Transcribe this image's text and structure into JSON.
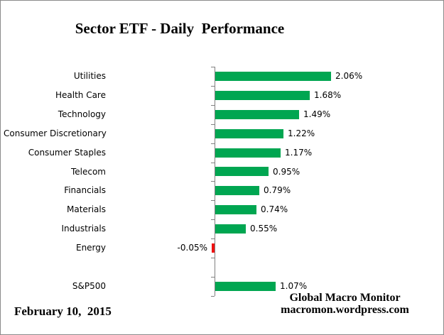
{
  "title": "Sector ETF - Daily  Performance",
  "footer": {
    "date": "February 10,  2015",
    "source_line1": "Global Macro Monitor",
    "source_line2": "macromon.wordpress.com"
  },
  "colors": {
    "positive_bar": "#00a651",
    "negative_bar": "#ee1111",
    "axis": "#808080",
    "frame_border": "#8a8a8a",
    "text": "#000000"
  },
  "chart_data": {
    "type": "bar",
    "orientation": "horizontal",
    "title": "Sector ETF - Daily  Performance",
    "xlabel": "",
    "ylabel": "",
    "value_unit": "%",
    "value_axis_labels_shown": false,
    "grid": false,
    "legend": false,
    "categories": [
      "Utilities",
      "Health Care",
      "Technology",
      "Consumer Discretionary",
      "Consumer Staples",
      "Telecom",
      "Financials",
      "Materials",
      "Industrials",
      "Energy",
      "",
      "S&P500"
    ],
    "values": [
      2.06,
      1.68,
      1.49,
      1.22,
      1.17,
      0.95,
      0.79,
      0.74,
      0.55,
      -0.05,
      null,
      1.07
    ],
    "rows": [
      {
        "label": "Utilities",
        "value": 2.06,
        "display": "2.06%"
      },
      {
        "label": "Health Care",
        "value": 1.68,
        "display": "1.68%"
      },
      {
        "label": "Technology",
        "value": 1.49,
        "display": "1.49%"
      },
      {
        "label": "Consumer Discretionary",
        "value": 1.22,
        "display": "1.22%"
      },
      {
        "label": "Consumer Staples",
        "value": 1.17,
        "display": "1.17%"
      },
      {
        "label": "Telecom",
        "value": 0.95,
        "display": "0.95%"
      },
      {
        "label": "Financials",
        "value": 0.79,
        "display": "0.79%"
      },
      {
        "label": "Materials",
        "value": 0.74,
        "display": "0.74%"
      },
      {
        "label": "Industrials",
        "value": 0.55,
        "display": "0.55%"
      },
      {
        "label": "Energy",
        "value": -0.05,
        "display": "-0.05%"
      },
      {
        "label": "",
        "value": null,
        "display": ""
      },
      {
        "label": "S&P500",
        "value": 1.07,
        "display": "1.07%"
      }
    ]
  }
}
